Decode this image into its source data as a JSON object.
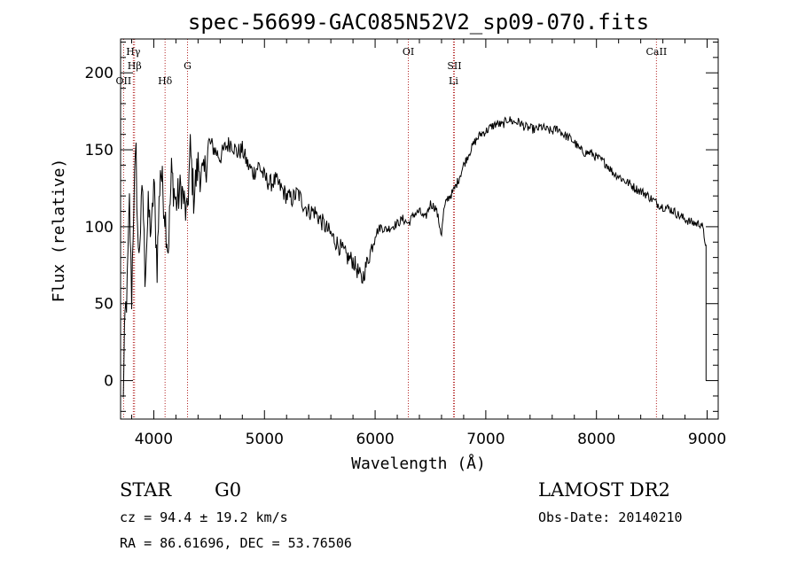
{
  "chart_data": {
    "type": "line",
    "title": "spec-56699-GAC085N52V2_sp09-070.fits",
    "xlabel": "Wavelength (Å)",
    "ylabel": "Flux (relative)",
    "xlim": [
      3700,
      9100
    ],
    "ylim": [
      -25,
      222
    ],
    "xticks": [
      {
        "value": 4000,
        "label": "4000"
      },
      {
        "value": 5000,
        "label": "5000"
      },
      {
        "value": 6000,
        "label": "6000"
      },
      {
        "value": 7000,
        "label": "7000"
      },
      {
        "value": 8000,
        "label": "8000"
      },
      {
        "value": 9000,
        "label": "9000"
      }
    ],
    "yticks": [
      {
        "value": 0,
        "label": "0"
      },
      {
        "value": 50,
        "label": "50"
      },
      {
        "value": 100,
        "label": "100"
      },
      {
        "value": 150,
        "label": "150"
      },
      {
        "value": 200,
        "label": "200"
      }
    ],
    "line_markers": [
      {
        "label": "OII",
        "x": 3727,
        "level": 3
      },
      {
        "label": "Hγ",
        "x": 3815,
        "level": 1
      },
      {
        "label": "Hβ",
        "x": 3826,
        "level": 2
      },
      {
        "label": "Hδ",
        "x": 4102,
        "level": 3
      },
      {
        "label": "G",
        "x": 4305,
        "level": 2
      },
      {
        "label": "OI",
        "x": 6300,
        "level": 1
      },
      {
        "label": "SII",
        "x": 6716,
        "level": 2
      },
      {
        "label": "Li",
        "x": 6708,
        "level": 3
      },
      {
        "label": "CaII",
        "x": 8542,
        "level": 1
      }
    ],
    "series": [
      {
        "name": "flux",
        "x": [
          3720,
          3730,
          3740,
          3760,
          3780,
          3800,
          3820,
          3840,
          3860,
          3880,
          3900,
          3920,
          3950,
          3980,
          4000,
          4030,
          4060,
          4100,
          4130,
          4160,
          4200,
          4250,
          4300,
          4330,
          4360,
          4400,
          4450,
          4500,
          4550,
          4600,
          4650,
          4700,
          4750,
          4800,
          4850,
          4900,
          4950,
          5000,
          5050,
          5100,
          5150,
          5200,
          5250,
          5300,
          5350,
          5400,
          5450,
          5500,
          5550,
          5600,
          5650,
          5700,
          5750,
          5800,
          5850,
          5880,
          5900,
          5950,
          6000,
          6050,
          6100,
          6150,
          6200,
          6250,
          6300,
          6350,
          6400,
          6450,
          6500,
          6550,
          6600,
          6620,
          6650,
          6700,
          6750,
          6800,
          6850,
          6900,
          6950,
          7000,
          7050,
          7100,
          7150,
          7200,
          7250,
          7300,
          7350,
          7400,
          7450,
          7500,
          7550,
          7600,
          7650,
          7700,
          7750,
          7800,
          7850,
          7900,
          7950,
          8000,
          8050,
          8100,
          8150,
          8200,
          8250,
          8300,
          8350,
          8400,
          8450,
          8500,
          8550,
          8600,
          8650,
          8700,
          8750,
          8800,
          8850,
          8900,
          8950,
          8990
        ],
        "values": [
          -15,
          5,
          40,
          60,
          115,
          55,
          120,
          145,
          80,
          100,
          125,
          70,
          110,
          95,
          130,
          75,
          140,
          110,
          85,
          135,
          115,
          125,
          105,
          150,
          120,
          140,
          130,
          155,
          150,
          145,
          152,
          155,
          148,
          150,
          140,
          135,
          140,
          132,
          128,
          130,
          125,
          120,
          118,
          122,
          115,
          110,
          110,
          105,
          100,
          95,
          90,
          85,
          80,
          78,
          70,
          65,
          70,
          82,
          95,
          100,
          98,
          100,
          102,
          105,
          102,
          108,
          110,
          105,
          115,
          112,
          95,
          110,
          118,
          122,
          130,
          140,
          148,
          155,
          160,
          162,
          165,
          167,
          166,
          170,
          168,
          168,
          165,
          164,
          163,
          165,
          163,
          162,
          164,
          160,
          158,
          155,
          150,
          148,
          148,
          145,
          143,
          140,
          135,
          133,
          130,
          128,
          125,
          123,
          121,
          118,
          115,
          113,
          112,
          110,
          107,
          105,
          103,
          102,
          102,
          88
        ]
      }
    ]
  },
  "info": {
    "object_type": "STAR",
    "subclass": "G0",
    "survey": "LAMOST DR2",
    "cz": "cz = 94.4 ± 19.2 km/s",
    "obs_date": "Obs-Date: 20140210",
    "radec": "RA =  86.61696, DEC =  53.76506"
  },
  "colors": {
    "spectrum": "#000000",
    "marker": "#b22222"
  }
}
